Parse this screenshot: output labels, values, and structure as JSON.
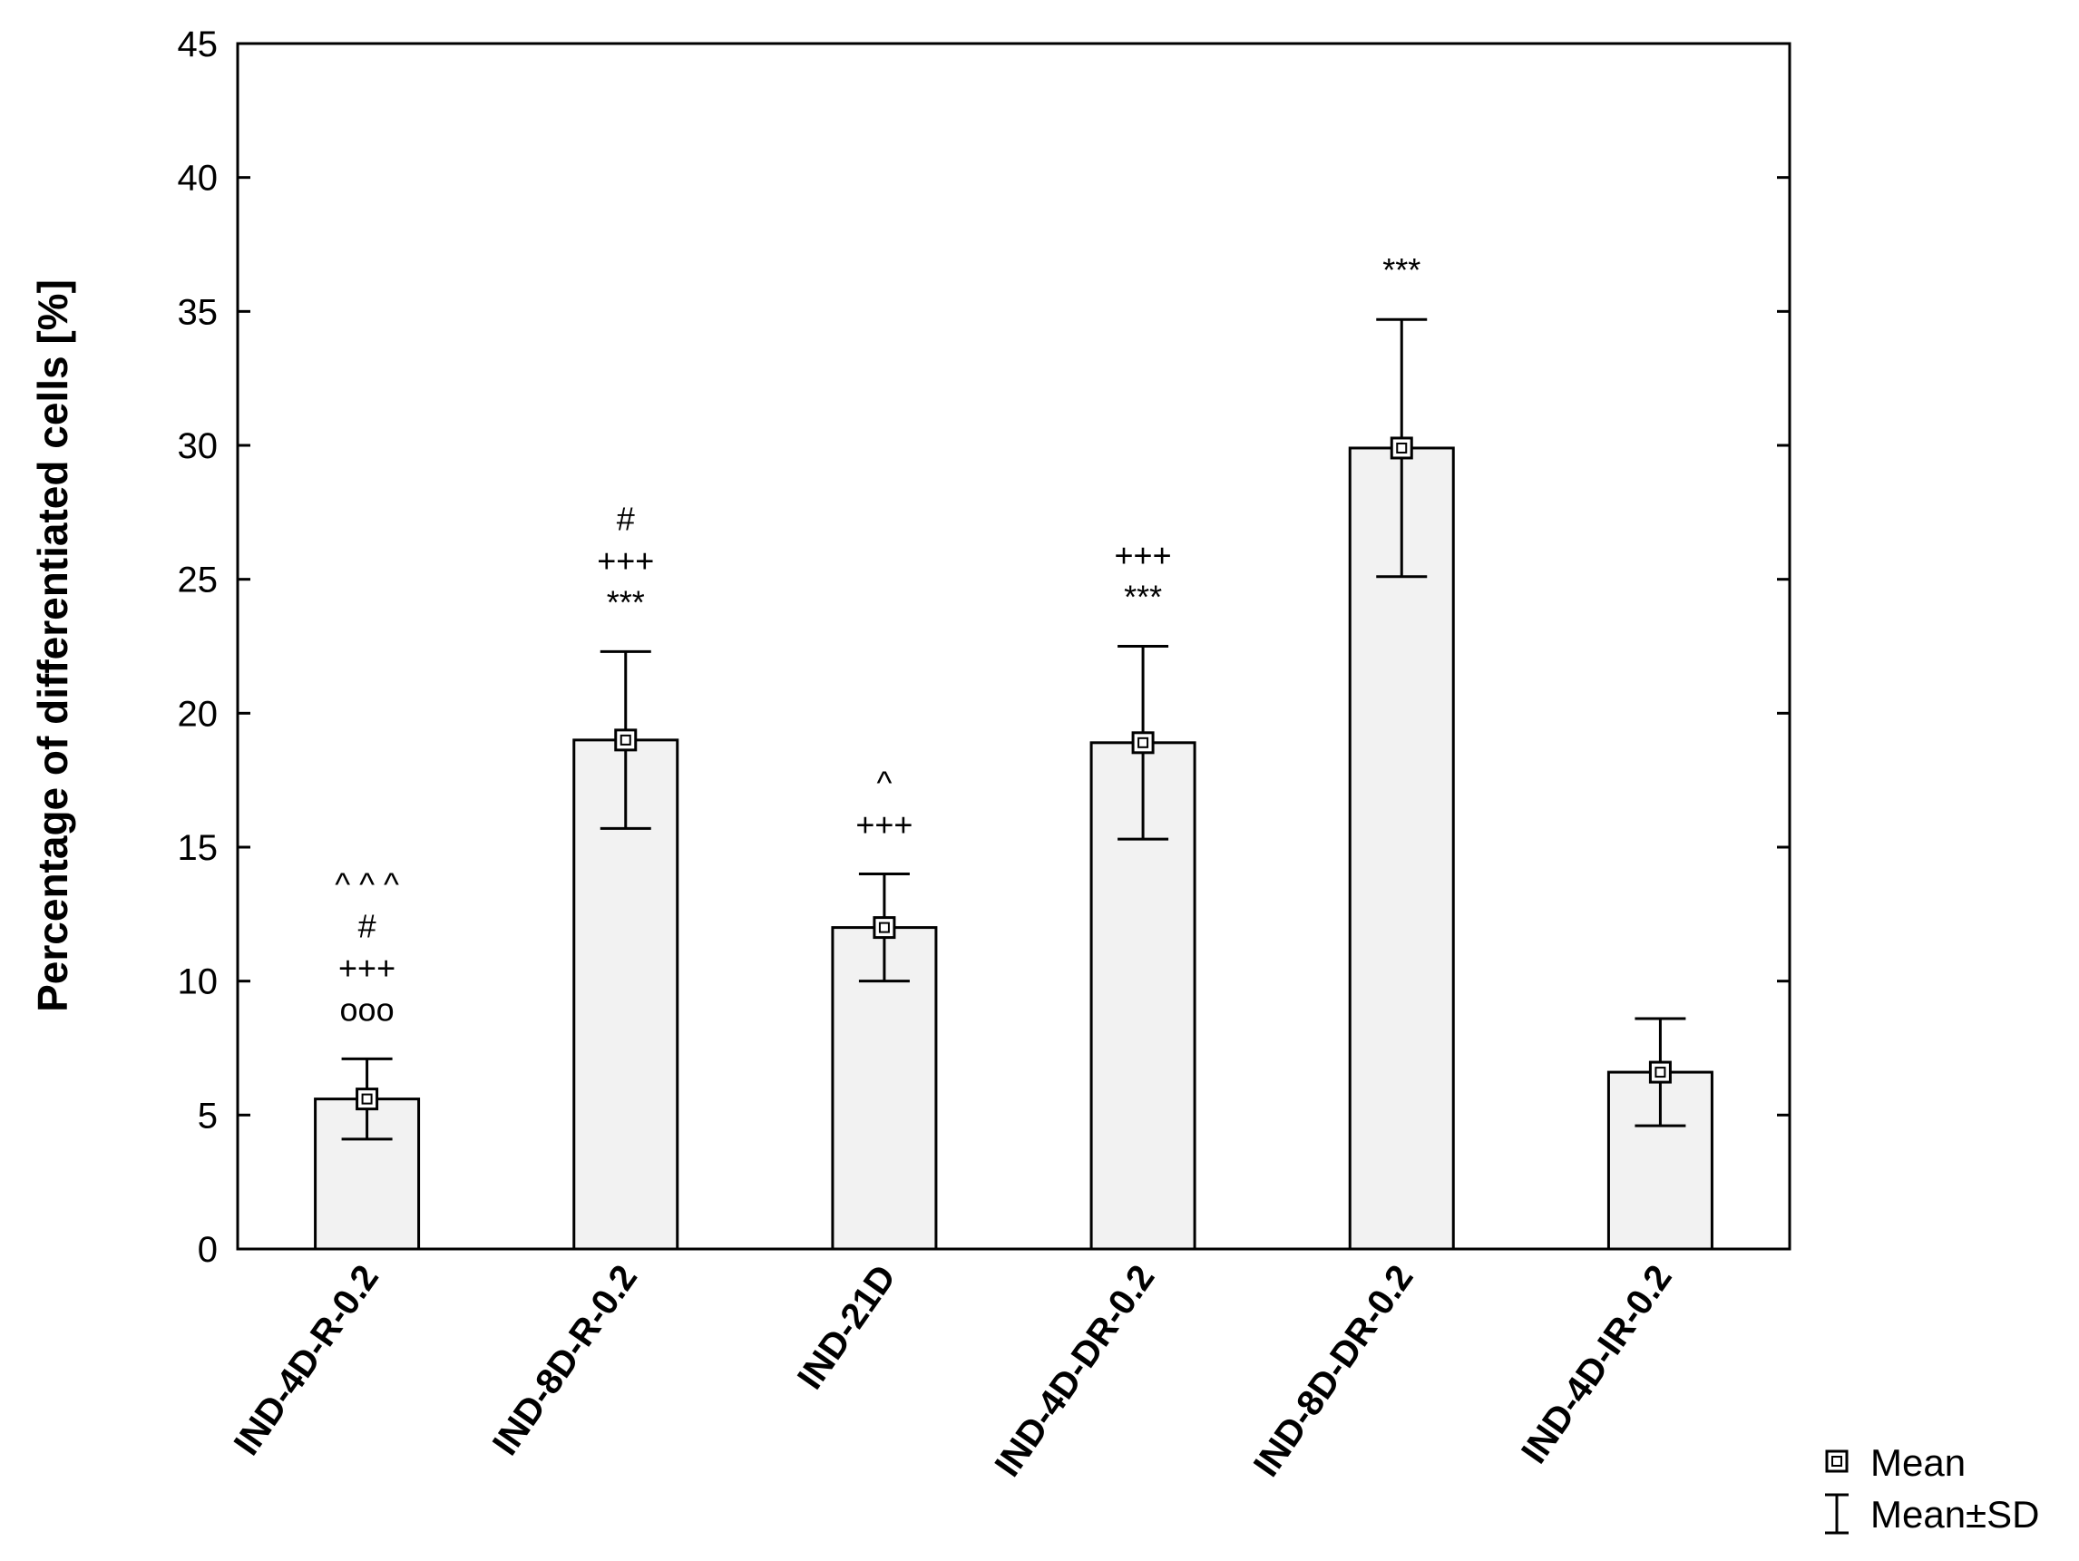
{
  "chart_data": {
    "type": "bar",
    "title": "",
    "xlabel": "",
    "ylabel": "Percentage of differentiated cells [%]",
    "ylim": [
      0,
      45
    ],
    "yticks": [
      0,
      5,
      10,
      15,
      20,
      25,
      30,
      35,
      40,
      45
    ],
    "grid": false,
    "legend_position": "bottom-right",
    "categories": [
      "IND-4D-R-0.2",
      "IND-8D-R-0.2",
      "IND-21D",
      "IND-4D-DR-0.2",
      "IND-8D-DR-0.2",
      "IND-4D-IR-0.2"
    ],
    "series": [
      {
        "name": "Mean",
        "values": [
          5.6,
          19.0,
          12.0,
          18.9,
          29.9,
          6.6
        ],
        "sd": [
          1.5,
          3.3,
          2.0,
          3.6,
          4.8,
          2.0
        ]
      }
    ],
    "annotations": [
      [
        "^ ^ ^",
        "#",
        "+++",
        "ooo"
      ],
      [
        "#",
        "+++",
        "***"
      ],
      [
        "^",
        "+++"
      ],
      [
        "+++",
        "***"
      ],
      [
        "***"
      ],
      []
    ],
    "legend": {
      "mean_label": "Mean",
      "sd_label": "Mean±SD"
    },
    "colors": {
      "bar_fill": "#f2f2f2",
      "stroke": "#000000"
    }
  }
}
